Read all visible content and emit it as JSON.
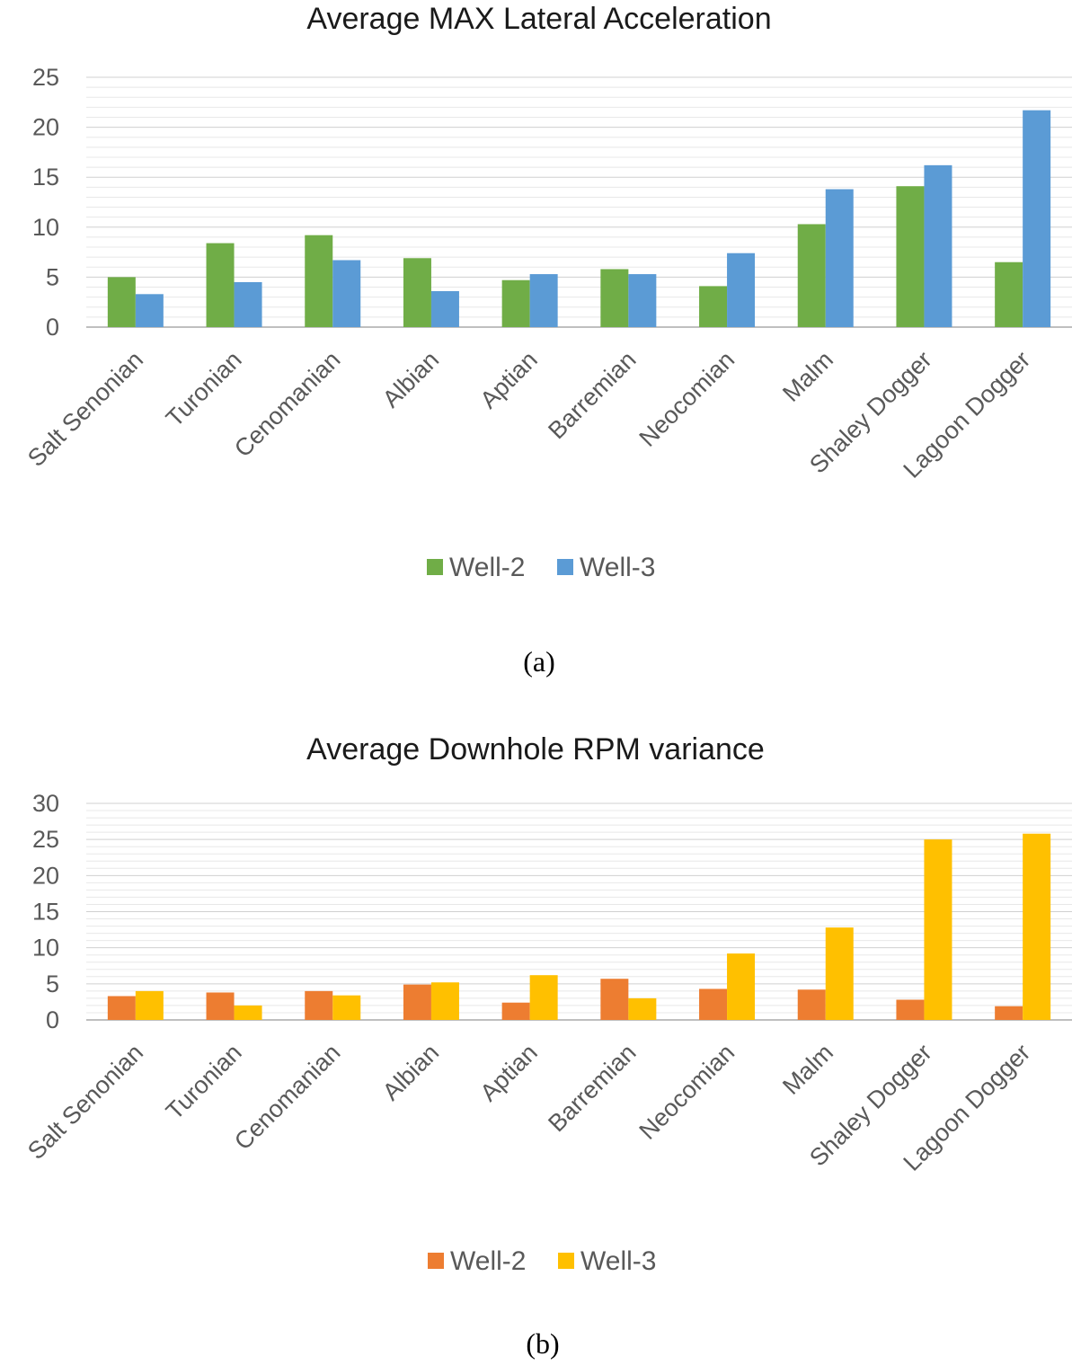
{
  "chart_data": [
    {
      "type": "bar",
      "title": "Average MAX Lateral Acceleration",
      "caption": "(a)",
      "categories": [
        "Salt Senonian",
        "Turonian",
        "Cenomanian",
        "Albian",
        "Aptian",
        "Barremian",
        "Neocomian",
        "Malm",
        "Shaley Dogger",
        "Lagoon Dogger"
      ],
      "series": [
        {
          "name": "Well-2",
          "color": "#70ad47",
          "values": [
            5.0,
            8.4,
            9.2,
            6.9,
            4.7,
            5.8,
            4.1,
            10.3,
            14.1,
            6.5
          ]
        },
        {
          "name": "Well-3",
          "color": "#5b9bd5",
          "values": [
            3.3,
            4.5,
            6.7,
            3.6,
            5.3,
            5.3,
            7.4,
            13.8,
            16.2,
            21.7
          ]
        }
      ],
      "yticks": [
        0,
        5,
        10,
        15,
        20,
        25
      ],
      "ylim": [
        0,
        25
      ],
      "xlabel": "",
      "ylabel": "",
      "legend": "bottom"
    },
    {
      "type": "bar",
      "title": "Average Downhole RPM variance",
      "caption": "(b)",
      "categories": [
        "Salt Senonian",
        "Turonian",
        "Cenomanian",
        "Albian",
        "Aptian",
        "Barremian",
        "Neocomian",
        "Malm",
        "Shaley Dogger",
        "Lagoon Dogger"
      ],
      "series": [
        {
          "name": "Well-2",
          "color": "#ed7d31",
          "values": [
            3.3,
            3.8,
            4.0,
            4.9,
            2.4,
            5.7,
            4.3,
            4.2,
            2.8,
            1.9
          ]
        },
        {
          "name": "Well-3",
          "color": "#ffc000",
          "values": [
            4.0,
            2.0,
            3.4,
            5.2,
            6.2,
            3.0,
            9.2,
            12.8,
            25.0,
            25.8
          ]
        }
      ],
      "yticks": [
        0,
        5,
        10,
        15,
        20,
        25,
        30
      ],
      "ylim": [
        0,
        30
      ],
      "xlabel": "",
      "ylabel": "",
      "legend": "bottom"
    }
  ]
}
